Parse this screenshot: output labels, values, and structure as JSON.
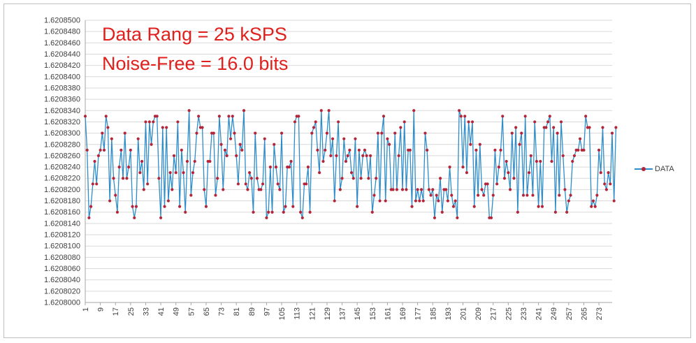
{
  "chart_data": {
    "type": "line",
    "legend": "right",
    "grid": true,
    "colors": {
      "line": "#2e8cc8",
      "marker": "#b3263a",
      "annotation": "#e0201c",
      "grid": "#d9d9d9"
    },
    "annotations": [
      "Data Rang = 25 kSPS",
      "Noise-Free = 16.0 bits"
    ],
    "ylim": [
      1.6208,
      1.62085
    ],
    "y_ticks": [
      "1.6208500",
      "1.6208480",
      "1.6208460",
      "1.6208440",
      "1.6208420",
      "1.6208400",
      "1.6208380",
      "1.6208360",
      "1.6208340",
      "1.6208320",
      "1.6208300",
      "1.6208280",
      "1.6208260",
      "1.6208240",
      "1.6208220",
      "1.6208200",
      "1.6208180",
      "1.6208160",
      "1.6208140",
      "1.6208120",
      "1.6208100",
      "1.6208080",
      "1.6208060",
      "1.6208040",
      "1.6208020",
      "1.6208000"
    ],
    "x_ticks": [
      "1",
      "9",
      "17",
      "25",
      "33",
      "41",
      "49",
      "57",
      "65",
      "73",
      "81",
      "89",
      "97",
      "105",
      "113",
      "121",
      "129",
      "137",
      "145",
      "153",
      "161",
      "169",
      "177",
      "185",
      "193",
      "201",
      "209",
      "217",
      "225",
      "233",
      "241",
      "249",
      "257",
      "265",
      "273"
    ],
    "xlim": [
      1,
      280
    ],
    "series": [
      {
        "name": "DATA",
        "values": [
          1.620833,
          1.620827,
          1.620815,
          1.620817,
          1.620821,
          1.620825,
          1.620821,
          1.620826,
          1.620827,
          1.62083,
          1.620827,
          1.620833,
          1.620831,
          1.620818,
          1.620829,
          1.620822,
          1.620819,
          1.620816,
          1.620824,
          1.620827,
          1.620822,
          1.62083,
          1.620822,
          1.620824,
          1.620827,
          1.620817,
          1.620815,
          1.620817,
          1.620829,
          1.620823,
          1.620825,
          1.62082,
          1.620832,
          1.620821,
          1.620832,
          1.620828,
          1.620832,
          1.620833,
          1.620833,
          1.620822,
          1.620815,
          1.620831,
          1.620817,
          1.620831,
          1.620818,
          1.620823,
          1.62082,
          1.620826,
          1.620823,
          1.620832,
          1.620817,
          1.620827,
          1.620823,
          1.620816,
          1.620825,
          1.620834,
          1.620819,
          1.620823,
          1.620825,
          1.62083,
          1.620833,
          1.620831,
          1.620831,
          1.62082,
          1.620817,
          1.620825,
          1.620825,
          1.62083,
          1.62083,
          1.620819,
          1.620822,
          1.620833,
          1.620828,
          1.62082,
          1.620827,
          1.620826,
          1.620833,
          1.620829,
          1.620833,
          1.62083,
          1.620826,
          1.620821,
          1.620828,
          1.620827,
          1.620834,
          1.620821,
          1.62082,
          1.620823,
          1.620822,
          1.620816,
          1.62083,
          1.620822,
          1.62082,
          1.62082,
          1.620821,
          1.620829,
          1.620815,
          1.620816,
          1.620824,
          1.620816,
          1.620828,
          1.620824,
          1.620821,
          1.62082,
          1.62083,
          1.620816,
          1.620817,
          1.620824,
          1.620824,
          1.620825,
          1.620817,
          1.620832,
          1.620833,
          1.620833,
          1.620816,
          1.620815,
          1.620821,
          1.620821,
          1.620824,
          1.620816,
          1.62083,
          1.620831,
          1.620832,
          1.620827,
          1.620823,
          1.620834,
          1.620825,
          1.620827,
          1.62083,
          1.620834,
          1.620826,
          1.620829,
          1.620818,
          1.620826,
          1.620832,
          1.62082,
          1.620822,
          1.620829,
          1.620825,
          1.620826,
          1.620827,
          1.620823,
          1.620822,
          1.620829,
          1.620817,
          1.620827,
          1.620822,
          1.620826,
          1.620827,
          1.620826,
          1.620822,
          1.620826,
          1.620816,
          1.620819,
          1.620822,
          1.62083,
          1.620818,
          1.62083,
          1.620833,
          1.620818,
          1.620829,
          1.620828,
          1.62082,
          1.62082,
          1.62083,
          1.62082,
          1.620826,
          1.620831,
          1.62082,
          1.620832,
          1.62082,
          1.620827,
          1.620827,
          1.620817,
          1.620834,
          1.620818,
          1.62082,
          1.620818,
          1.62082,
          1.620818,
          1.62083,
          1.620827,
          1.62082,
          1.620819,
          1.62082,
          1.620815,
          1.620819,
          1.620818,
          1.620822,
          1.620816,
          1.62082,
          1.62082,
          1.620818,
          1.620824,
          1.620819,
          1.620817,
          1.620818,
          1.620815,
          1.620834,
          1.620833,
          1.620824,
          1.620833,
          1.620823,
          1.620832,
          1.620828,
          1.620832,
          1.620817,
          1.620827,
          1.620819,
          1.620828,
          1.62082,
          1.620819,
          1.620821,
          1.620821,
          1.620815,
          1.620815,
          1.620819,
          1.620827,
          1.620821,
          1.620824,
          1.620827,
          1.620833,
          1.620822,
          1.620825,
          1.620823,
          1.62082,
          1.62083,
          1.620822,
          1.620831,
          1.620816,
          1.620828,
          1.62083,
          1.620819,
          1.620833,
          1.620819,
          1.620823,
          1.620826,
          1.620819,
          1.620832,
          1.620825,
          1.620817,
          1.620825,
          1.620817,
          1.620831,
          1.620831,
          1.620832,
          1.620833,
          1.620825,
          1.620831,
          1.620816,
          1.62083,
          1.620819,
          1.620832,
          1.620826,
          1.62082,
          1.620816,
          1.620818,
          1.620819,
          1.620825,
          1.620826,
          1.620827,
          1.620827,
          1.620829,
          1.620827,
          1.620827,
          1.620833,
          1.620831,
          1.620831,
          1.620817,
          1.620818,
          1.620817,
          1.620819,
          1.620827,
          1.620823,
          1.620831,
          1.620821,
          1.62082,
          1.620823,
          1.620821,
          1.62083,
          1.620818,
          1.620831
        ]
      }
    ]
  }
}
